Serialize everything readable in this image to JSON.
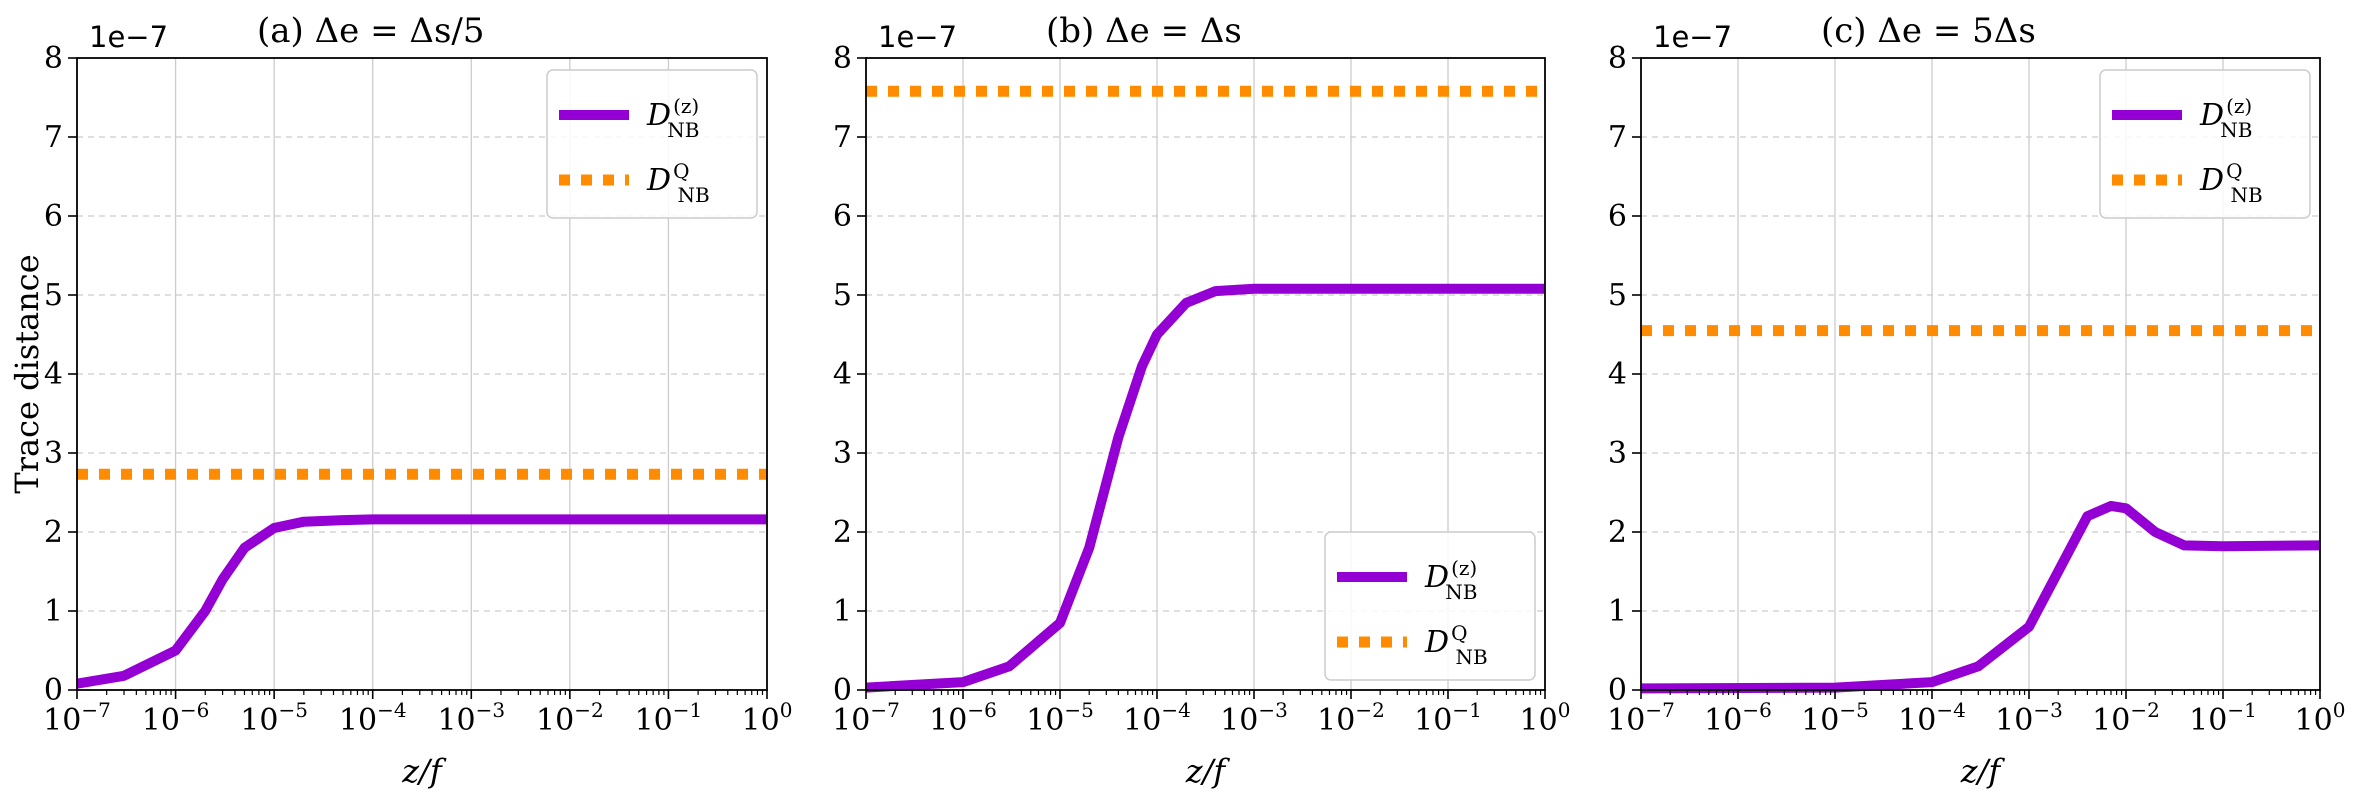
{
  "colors": {
    "purple": "#9400D3",
    "orange": "#FF8C00",
    "grid": "#cccccc",
    "axis": "#000000"
  },
  "shared": {
    "ylabel": "Trace distance",
    "xlabel": "z/f",
    "offset_label": "1e−7",
    "legend_labels": [
      "D_NB^(z)",
      "D_NB^Q"
    ]
  },
  "chart_data": [
    {
      "type": "line",
      "title": "(a)   Δe = Δs/5",
      "xscale": "log",
      "xlim": [
        1e-07,
        1
      ],
      "ylim": [
        0,
        8
      ],
      "y_offset_exponent": -7,
      "x_ticks": [
        "10^-7",
        "10^-6",
        "10^-5",
        "10^-4",
        "10^-3",
        "10^-2",
        "10^-1",
        "10^0"
      ],
      "y_ticks": [
        0,
        1,
        2,
        3,
        4,
        5,
        6,
        7,
        8
      ],
      "grid": true,
      "legend_position": "top-right",
      "series": [
        {
          "name": "D_NB^(z)",
          "style": "solid",
          "color": "#9400D3",
          "x": [
            1e-07,
            3e-07,
            1e-06,
            2e-06,
            3e-06,
            5e-06,
            1e-05,
            2e-05,
            5e-05,
            0.0001,
            0.001,
            0.01,
            0.1,
            1
          ],
          "y": [
            0.08,
            0.18,
            0.5,
            1.0,
            1.4,
            1.8,
            2.05,
            2.13,
            2.15,
            2.16,
            2.16,
            2.16,
            2.16,
            2.16
          ]
        },
        {
          "name": "D_NB^Q",
          "style": "dotted",
          "color": "#FF8C00",
          "x": [
            1e-07,
            1
          ],
          "y": [
            2.73,
            2.73
          ]
        }
      ]
    },
    {
      "type": "line",
      "title": "(b)   Δe = Δs",
      "xscale": "log",
      "xlim": [
        1e-07,
        1
      ],
      "ylim": [
        0,
        8
      ],
      "y_offset_exponent": -7,
      "x_ticks": [
        "10^-7",
        "10^-6",
        "10^-5",
        "10^-4",
        "10^-3",
        "10^-2",
        "10^-1",
        "10^0"
      ],
      "y_ticks": [
        0,
        1,
        2,
        3,
        4,
        5,
        6,
        7,
        8
      ],
      "grid": true,
      "legend_position": "bottom-right",
      "series": [
        {
          "name": "D_NB^(z)",
          "style": "solid",
          "color": "#9400D3",
          "x": [
            1e-07,
            1e-06,
            3e-06,
            1e-05,
            2e-05,
            4e-05,
            7e-05,
            0.0001,
            0.0002,
            0.0004,
            0.001,
            0.01,
            0.1,
            1
          ],
          "y": [
            0.03,
            0.1,
            0.3,
            0.85,
            1.8,
            3.2,
            4.1,
            4.5,
            4.9,
            5.05,
            5.08,
            5.08,
            5.08,
            5.08
          ]
        },
        {
          "name": "D_NB^Q",
          "style": "dotted",
          "color": "#FF8C00",
          "x": [
            1e-07,
            1
          ],
          "y": [
            7.58,
            7.58
          ]
        }
      ]
    },
    {
      "type": "line",
      "title": "(c)   Δe = 5Δs",
      "xscale": "log",
      "xlim": [
        1e-07,
        1
      ],
      "ylim": [
        0,
        8
      ],
      "y_offset_exponent": -7,
      "x_ticks": [
        "10^-7",
        "10^-6",
        "10^-5",
        "10^-4",
        "10^-3",
        "10^-2",
        "10^-1",
        "10^0"
      ],
      "y_ticks": [
        0,
        1,
        2,
        3,
        4,
        5,
        6,
        7,
        8
      ],
      "grid": true,
      "legend_position": "top-right",
      "series": [
        {
          "name": "D_NB^(z)",
          "style": "solid",
          "color": "#9400D3",
          "x": [
            1e-07,
            1e-05,
            0.0001,
            0.0003,
            0.001,
            0.002,
            0.004,
            0.007,
            0.01,
            0.02,
            0.04,
            0.1,
            1
          ],
          "y": [
            0.02,
            0.03,
            0.1,
            0.3,
            0.8,
            1.5,
            2.2,
            2.33,
            2.3,
            2.0,
            1.83,
            1.82,
            1.83
          ]
        },
        {
          "name": "D_NB^Q",
          "style": "dotted",
          "color": "#FF8C00",
          "x": [
            1e-07,
            1
          ],
          "y": [
            4.55,
            4.55
          ]
        }
      ]
    }
  ]
}
